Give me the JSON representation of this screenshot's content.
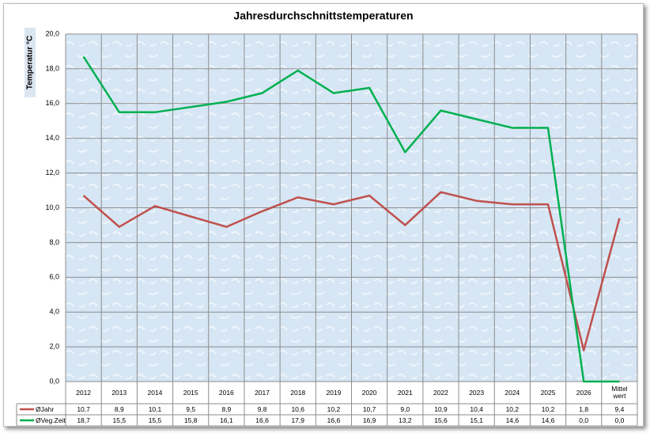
{
  "chart_data": {
    "type": "line",
    "title": "Jahresdurchschnittstemperaturen",
    "y_label": "Temperatur °C",
    "categories": [
      "2012",
      "2013",
      "2014",
      "2015",
      "2016",
      "2017",
      "2018",
      "2019",
      "2020",
      "2021",
      "2022",
      "2023",
      "2024",
      "2025",
      "2026",
      "Mittel wert"
    ],
    "series": [
      {
        "name": "ØJahr",
        "color": "#c0504d",
        "values": [
          10.7,
          8.9,
          10.1,
          9.5,
          8.9,
          9.8,
          10.6,
          10.2,
          10.7,
          9.0,
          10.9,
          10.4,
          10.2,
          10.2,
          1.8,
          9.4
        ],
        "value_labels": [
          "10,7",
          "8,9",
          "10,1",
          "9,5",
          "8,9",
          "9,8",
          "10,6",
          "10,2",
          "10,7",
          "9,0",
          "10,9",
          "10,4",
          "10,2",
          "10,2",
          "1,8",
          "9,4"
        ]
      },
      {
        "name": "ØVeg.Zeit",
        "color": "#00b050",
        "values": [
          18.7,
          15.5,
          15.5,
          15.8,
          16.1,
          16.6,
          17.9,
          16.6,
          16.9,
          13.2,
          15.6,
          15.1,
          14.6,
          14.6,
          0.0,
          0.0
        ],
        "value_labels": [
          "18,7",
          "15,5",
          "15,5",
          "15,8",
          "16,1",
          "16,6",
          "17,9",
          "16,6",
          "16,9",
          "13,2",
          "15,6",
          "15,1",
          "14,6",
          "14,6",
          "0,0",
          "0,0"
        ]
      }
    ],
    "ylim": [
      0,
      20
    ],
    "yticks": [
      {
        "value": 0,
        "label": "0,0"
      },
      {
        "value": 2,
        "label": "2,0"
      },
      {
        "value": 4,
        "label": "4,0"
      },
      {
        "value": 6,
        "label": "6,0"
      },
      {
        "value": 8,
        "label": "8,0"
      },
      {
        "value": 10,
        "label": "10,0"
      },
      {
        "value": 12,
        "label": "12,0"
      },
      {
        "value": 14,
        "label": "14,0"
      },
      {
        "value": 16,
        "label": "16,0"
      },
      {
        "value": 18,
        "label": "18,0"
      },
      {
        "value": 20,
        "label": "20,0"
      }
    ],
    "grid": true
  }
}
